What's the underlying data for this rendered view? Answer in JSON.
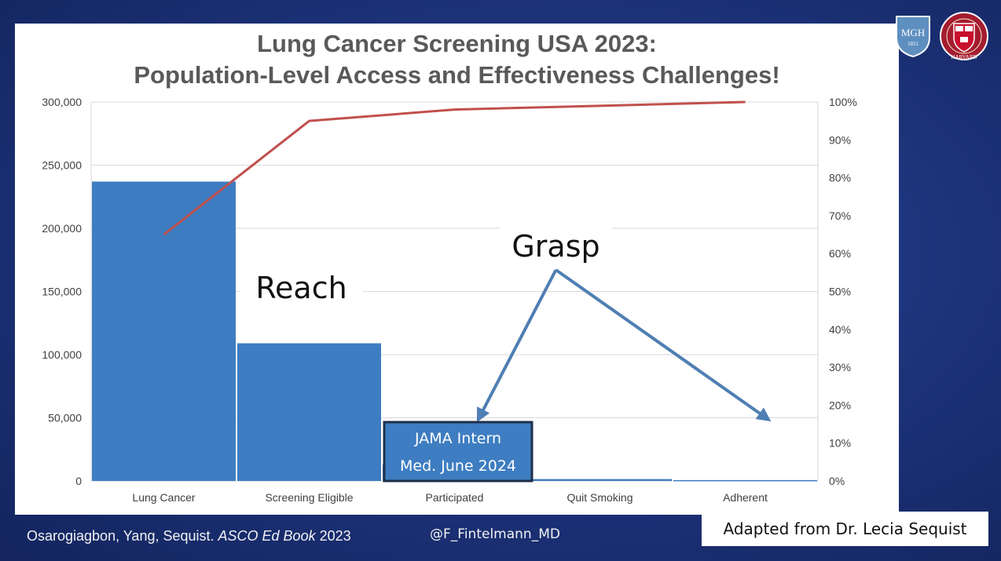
{
  "slide": {
    "citation_authors": "Osarogiagbon, Yang, Sequist.",
    "citation_source": "ASCO Ed Book",
    "citation_year": "2023",
    "handle": "@F_Fintelmann_MD",
    "adapted": "Adapted from Dr. Lecia Sequist",
    "logos": {
      "left": "mgh-shield-logo",
      "right": "harvard-shield-logo"
    },
    "logo_text": {
      "mgh": "MGH",
      "mgh_year": "1811",
      "harvard": "HARVARD"
    }
  },
  "chart_data": {
    "type": "bar",
    "title_line1": "Lung Cancer Screening USA 2023:",
    "title_line2": "Population-Level Access and Effectiveness Challenges!",
    "categories": [
      "Lung Cancer",
      "Screening Eligible",
      "Participated",
      "Quit Smoking",
      "Adherent"
    ],
    "series": [
      {
        "type": "bar",
        "values": [
          237000,
          109000,
          13000,
          1500,
          700
        ],
        "color": "#3e7dc1"
      },
      {
        "type": "line",
        "axis": "right",
        "values": [
          65,
          95,
          98,
          99,
          100
        ],
        "color": "#c0504d"
      }
    ],
    "ylim": [
      0,
      300000
    ],
    "yticks": [
      "0",
      "50,000",
      "100,000",
      "150,000",
      "200,000",
      "250,000",
      "300,000"
    ],
    "y2lim": [
      0,
      100
    ],
    "y2ticks": [
      "0%",
      "10%",
      "20%",
      "30%",
      "40%",
      "50%",
      "60%",
      "70%",
      "80%",
      "90%",
      "100%"
    ],
    "grid": true,
    "annotations": {
      "reach": "Reach",
      "grasp": "Grasp",
      "jama_line1": "JAMA Intern",
      "jama_line2": "Med. June 2024"
    },
    "arrow_color": "#4f7fb3"
  }
}
